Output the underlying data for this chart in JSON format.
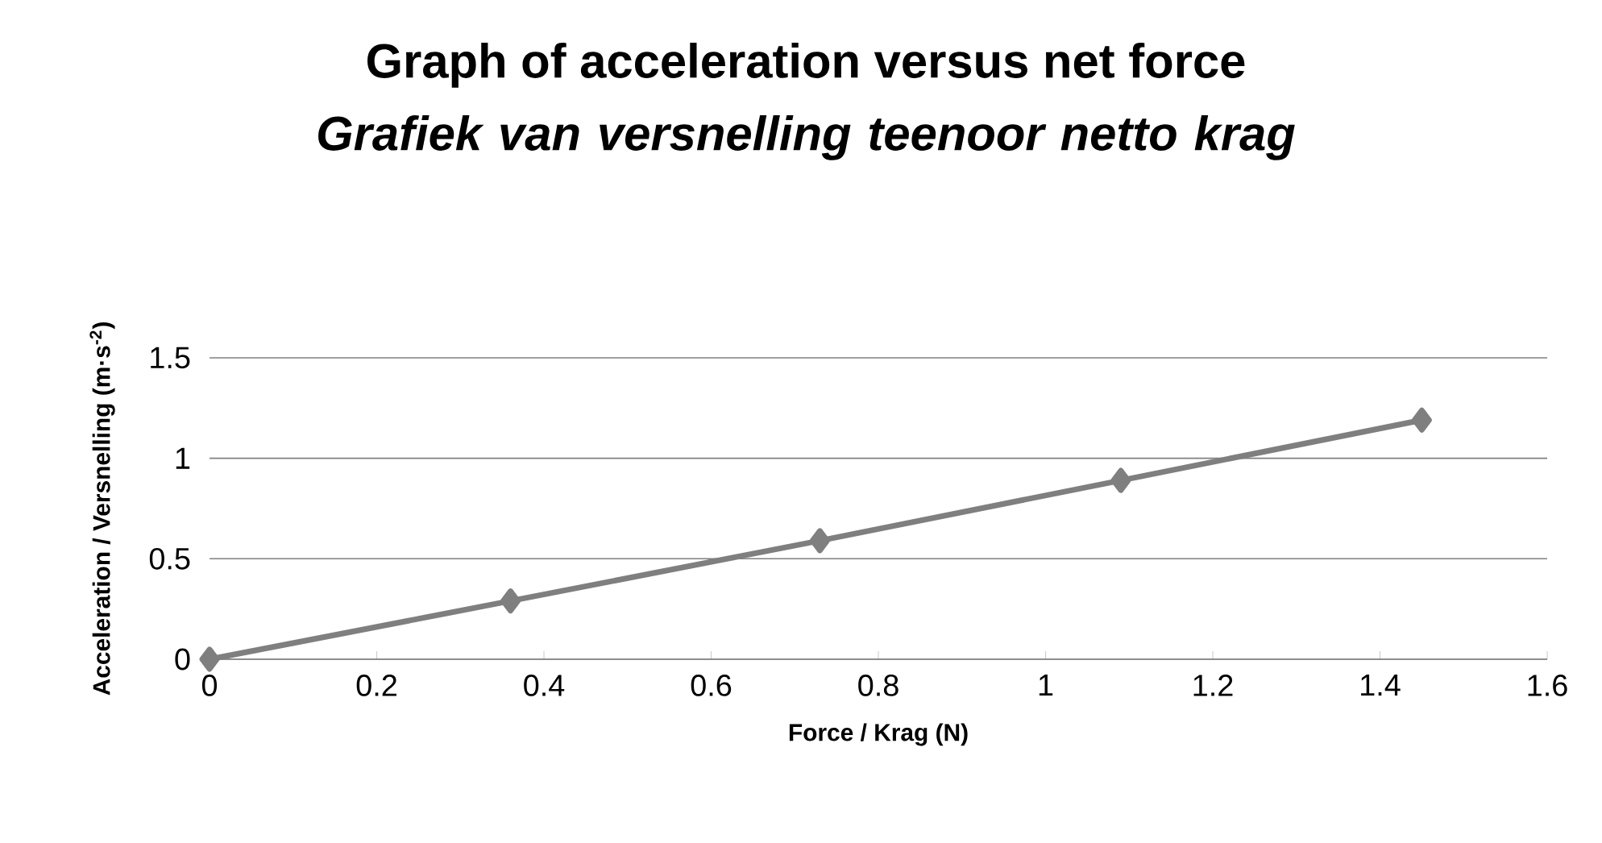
{
  "chart_data": {
    "type": "line",
    "title": "Graph of acceleration versus net force",
    "subtitle": "Grafiek van versnelling teenoor netto krag",
    "xlabel": "Force / Krag (N)",
    "ylabel": "Acceleration / Versnelling (m·s$^{-2}$)",
    "x": [
      0,
      0.36,
      0.73,
      1.09,
      1.45
    ],
    "series": [
      {
        "color": "#7f7f7f",
        "values": [
          0,
          0.29,
          0.59,
          0.89,
          1.19
        ]
      }
    ],
    "xlim": [
      0,
      1.6
    ],
    "xticks": [
      0,
      0.2,
      0.4,
      0.6,
      0.8,
      1,
      1.2,
      1.4,
      1.6
    ],
    "ylim": [
      0,
      1.5
    ],
    "yticks": [
      0,
      0.5,
      1,
      1.5
    ],
    "grid": "y",
    "marker": "diamond",
    "line_style": "solid"
  }
}
